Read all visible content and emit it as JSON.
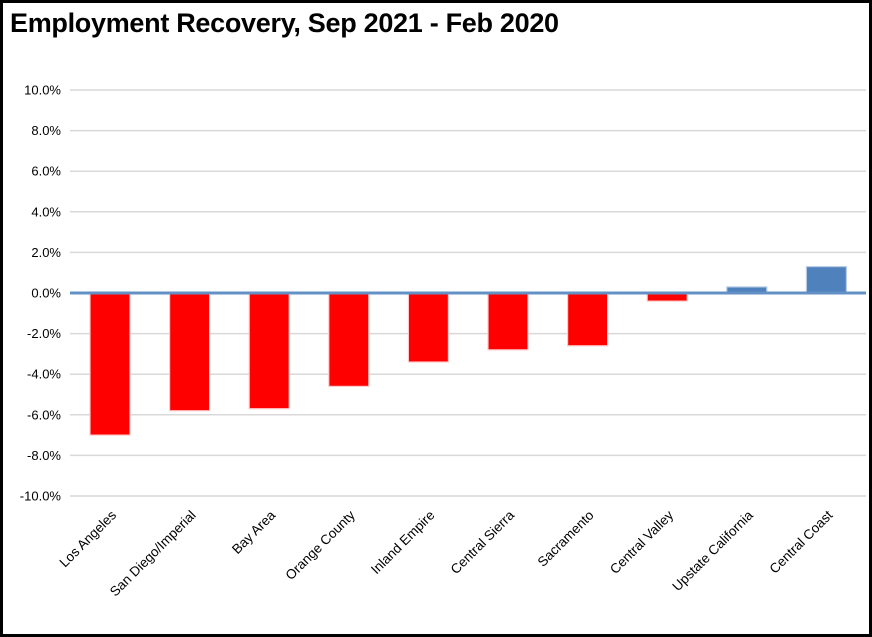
{
  "chart_data": {
    "type": "bar",
    "title": "Employment Recovery, Sep 2021 - Feb 2020",
    "categories": [
      "Los Angeles",
      "San Diego/Imperial",
      "Bay Area",
      "Orange County",
      "Inland Empire",
      "Central Sierra",
      "Sacramento",
      "Central Valley",
      "Upstate California",
      "Central Coast"
    ],
    "values": [
      -7.0,
      -5.8,
      -5.7,
      -4.6,
      -3.4,
      -2.8,
      -2.6,
      -0.4,
      0.3,
      1.3
    ],
    "unit": "percent",
    "xlabel": "",
    "ylabel": "",
    "ylim": [
      -10,
      10
    ],
    "ytick_step": 2,
    "ytick_labels": [
      "10.0%",
      "8.0%",
      "6.0%",
      "4.0%",
      "2.0%",
      "0.0%",
      "-2.0%",
      "-4.0%",
      "-6.0%",
      "-8.0%",
      "-10.0%"
    ],
    "grid": true,
    "legend": "none",
    "colors": {
      "bar_negative": "#ff0000",
      "bar_positive": "#4f81bd",
      "bar_edge_negative": "#ffc9c9",
      "bar_edge_positive": "#b9cde5",
      "axis_line": "#6390c5",
      "gridline": "#d9d9d9",
      "text": "#000000",
      "background": "#ffffff",
      "border": "#000000"
    }
  }
}
